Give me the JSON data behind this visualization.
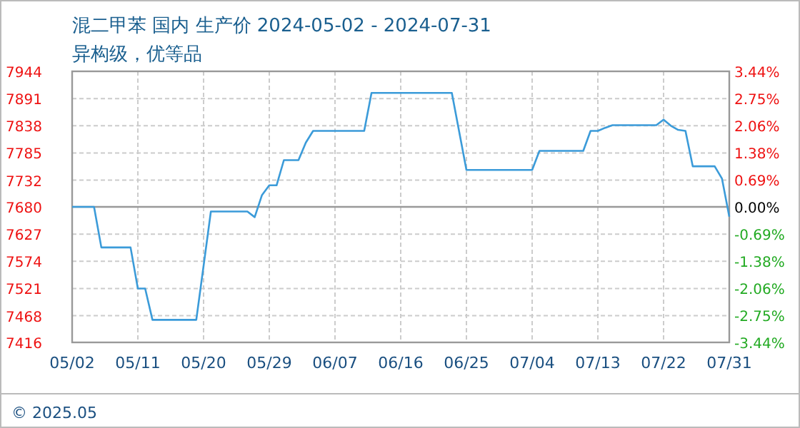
{
  "chart_data": {
    "type": "line",
    "title": "混二甲苯 国内 生产价 2024-05-02 - 2024-07-31",
    "subtitle": "异构级，优等品",
    "x": [
      "2024-05-02",
      "2024-05-05",
      "2024-05-06",
      "2024-05-10",
      "2024-05-11",
      "2024-05-12",
      "2024-05-13",
      "2024-05-19",
      "2024-05-20",
      "2024-05-21",
      "2024-05-26",
      "2024-05-27",
      "2024-05-28",
      "2024-05-29",
      "2024-05-30",
      "2024-05-31",
      "2024-06-02",
      "2024-06-03",
      "2024-06-04",
      "2024-06-11",
      "2024-06-12",
      "2024-06-23",
      "2024-06-24",
      "2024-06-25",
      "2024-07-04",
      "2024-07-05",
      "2024-07-11",
      "2024-07-12",
      "2024-07-13",
      "2024-07-14",
      "2024-07-15",
      "2024-07-21",
      "2024-07-22",
      "2024-07-23",
      "2024-07-24",
      "2024-07-25",
      "2024-07-26",
      "2024-07-29",
      "2024-07-30",
      "2024-07-31"
    ],
    "series": [
      {
        "color": "#3b9bd9",
        "values": [
          7680,
          7680,
          7601,
          7601,
          7521,
          7521,
          7460,
          7460,
          7565,
          7671,
          7671,
          7660,
          7703,
          7722,
          7722,
          7771,
          7771,
          7805,
          7828,
          7828,
          7902,
          7902,
          7827,
          7752,
          7752,
          7789,
          7789,
          7828,
          7828,
          7834,
          7839,
          7839,
          7850,
          7838,
          7830,
          7828,
          7759,
          7759,
          7735,
          7661
        ]
      }
    ],
    "xlim": [
      "2024-05-02",
      "2024-07-31"
    ],
    "xticks": [
      {
        "value": "2024-05-02",
        "label": "05/02"
      },
      {
        "value": "2024-05-11",
        "label": "05/11"
      },
      {
        "value": "2024-05-20",
        "label": "05/20"
      },
      {
        "value": "2024-05-29",
        "label": "05/29"
      },
      {
        "value": "2024-06-07",
        "label": "06/07"
      },
      {
        "value": "2024-06-16",
        "label": "06/16"
      },
      {
        "value": "2024-06-25",
        "label": "06/25"
      },
      {
        "value": "2024-07-04",
        "label": "07/04"
      },
      {
        "value": "2024-07-13",
        "label": "07/13"
      },
      {
        "value": "2024-07-22",
        "label": "07/22"
      },
      {
        "value": "2024-07-31",
        "label": "07/31"
      }
    ],
    "ylim": [
      7416,
      7944
    ],
    "yticks": [
      7416,
      7468,
      7521,
      7574,
      7627,
      7680,
      7732,
      7785,
      7838,
      7891,
      7944
    ],
    "y2lim": [
      -3.44,
      3.44
    ],
    "y2ticks": [
      {
        "value": -3.44,
        "label": "-3.44%"
      },
      {
        "value": -2.75,
        "label": "-2.75%"
      },
      {
        "value": -2.06,
        "label": "-2.06%"
      },
      {
        "value": -1.38,
        "label": "-1.38%"
      },
      {
        "value": -0.69,
        "label": "-0.69%"
      },
      {
        "value": 0,
        "label": "0.00%"
      },
      {
        "value": 0.69,
        "label": "0.69%"
      },
      {
        "value": 1.38,
        "label": "1.38%"
      },
      {
        "value": 2.06,
        "label": "2.06%"
      },
      {
        "value": 2.75,
        "label": "2.75%"
      },
      {
        "value": 3.44,
        "label": "3.44%"
      }
    ],
    "ref_lines": [
      {
        "axis": "y",
        "value": 7680,
        "color": "#999999"
      }
    ],
    "grid": true,
    "line_style": "solid",
    "marker": "none",
    "annotations": [
      "© 2025.05"
    ]
  }
}
